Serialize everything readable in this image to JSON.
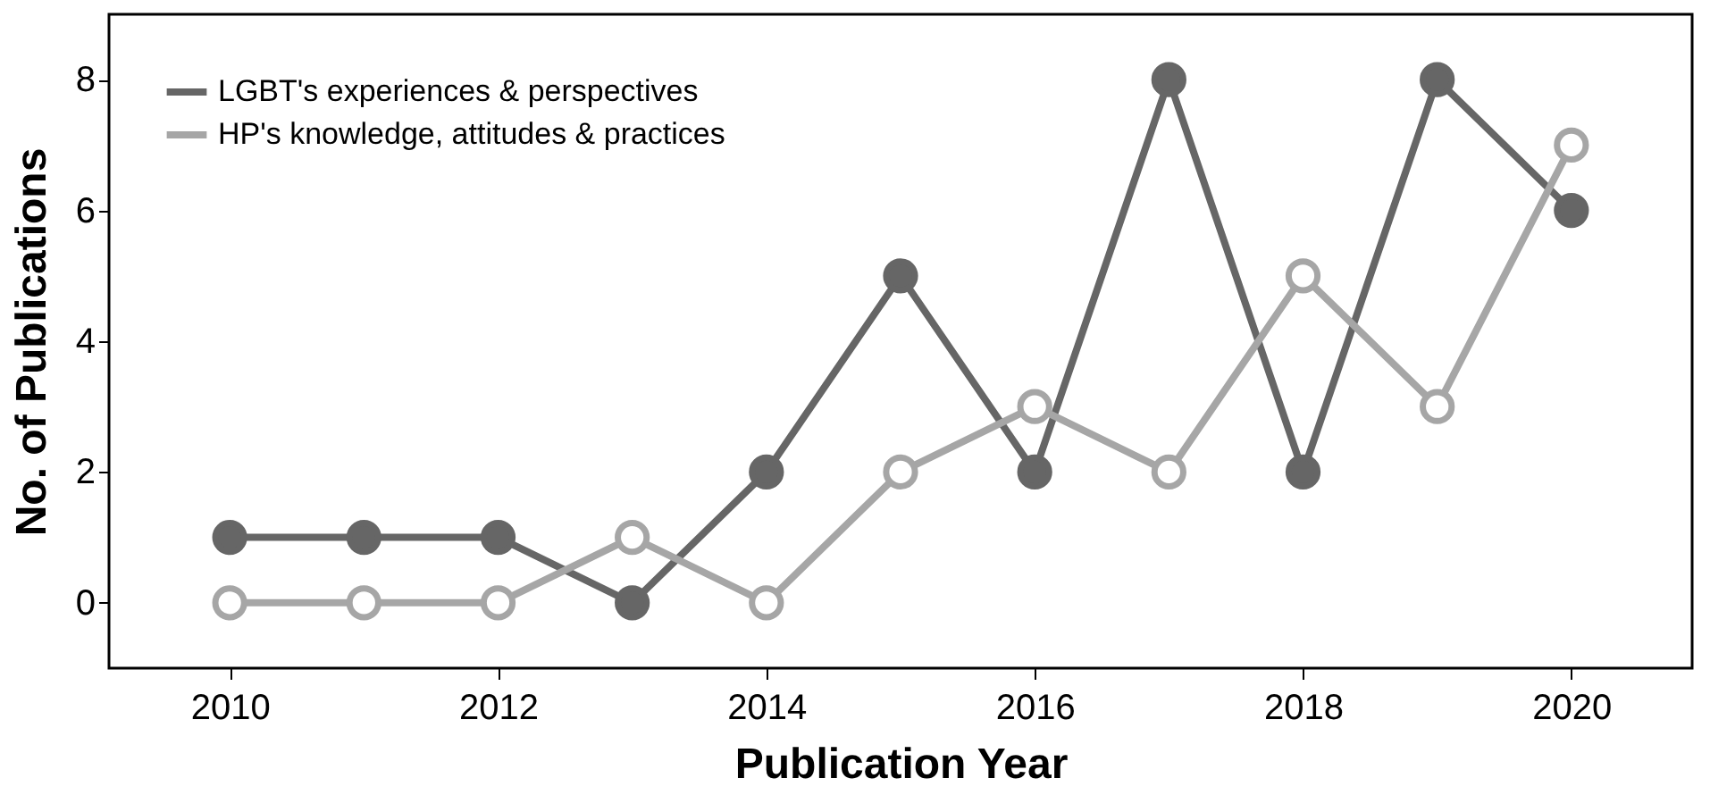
{
  "chart_data": {
    "type": "line",
    "xlabel": "Publication Year",
    "ylabel": "No. of Publications",
    "x": [
      2010,
      2011,
      2012,
      2013,
      2014,
      2015,
      2016,
      2017,
      2018,
      2019,
      2020
    ],
    "series": [
      {
        "name": "LGBT's experiences & perspectives",
        "color": "#666666",
        "values": [
          1,
          1,
          1,
          0,
          2,
          5,
          2,
          8,
          2,
          8,
          6
        ]
      },
      {
        "name": "HP's knowledge, attitudes & practices",
        "color": "#a6a6a6",
        "values": [
          0,
          0,
          0,
          1,
          0,
          2,
          3,
          2,
          5,
          3,
          7
        ]
      }
    ],
    "xlim": [
      2009.1,
      2020.9
    ],
    "xticks": [
      2010,
      2012,
      2014,
      2016,
      2018,
      2020
    ],
    "ylim": [
      -1,
      9
    ],
    "yticks": [
      0,
      2,
      4,
      6,
      8
    ],
    "grid": false,
    "legend": "top left",
    "marker": "circle",
    "line_style": "solid"
  }
}
